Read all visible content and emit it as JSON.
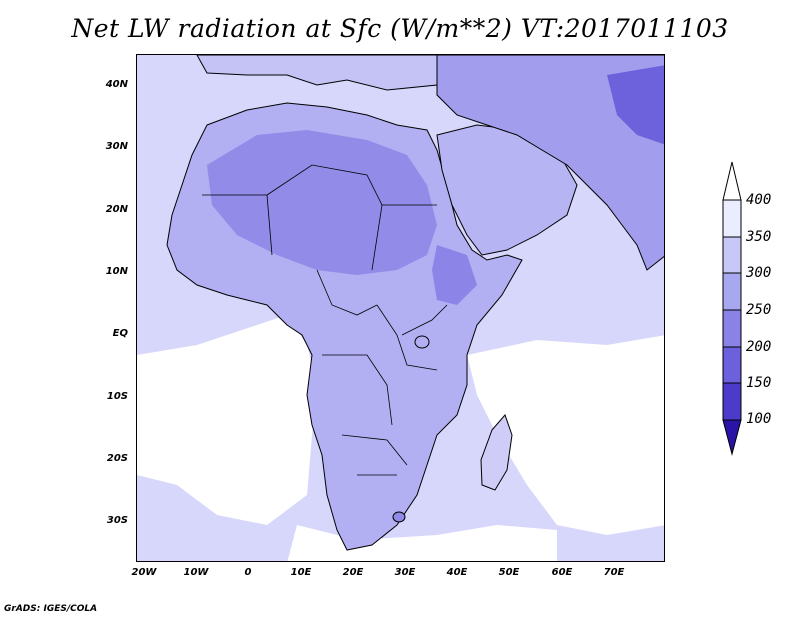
{
  "title": "Net LW radiation at Sfc (W/m**2) VT:2017011103",
  "footer": "GrADS: IGES/COLA",
  "lat_labels": [
    "40N",
    "30N",
    "20N",
    "10N",
    "EQ",
    "10S",
    "20S",
    "30S"
  ],
  "lon_labels": [
    "20W",
    "10W",
    "0",
    "10E",
    "20E",
    "30E",
    "40E",
    "50E",
    "60E",
    "70E"
  ],
  "colorbar": {
    "labels": [
      "400",
      "350",
      "300",
      "250",
      "200",
      "150",
      "100"
    ],
    "colors": [
      "#ececff",
      "#c8c8f8",
      "#a8a8f0",
      "#8a82e6",
      "#6c60dc",
      "#4c3acb",
      "#2a14a8"
    ],
    "top_arrow_color": "#ffffff",
    "bottom_arrow_color": "#2a14a8"
  },
  "map_colors": {
    "ocean": "#d7d7fb",
    "ocean_clear": "#ffffff",
    "land_light": "#c3c2f6",
    "land_mid": "#a9a5f0",
    "land_dark": "#8f89e8",
    "land_darker": "#7a70e2"
  }
}
